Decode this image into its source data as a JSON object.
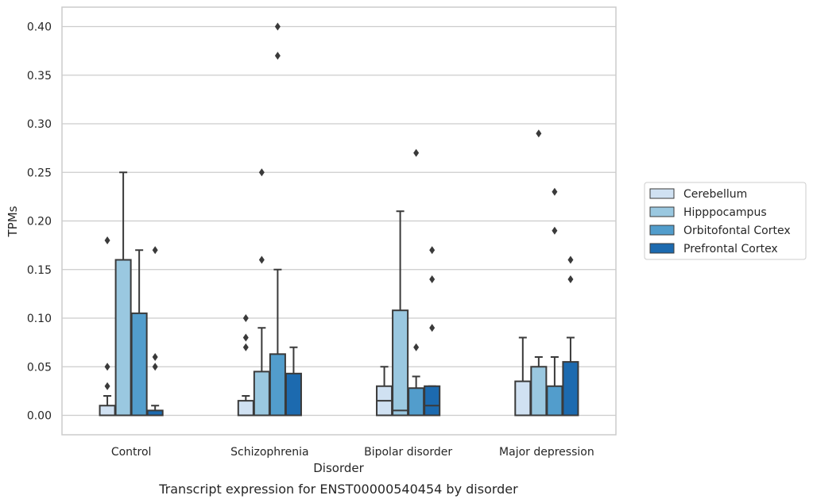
{
  "chart_data": {
    "type": "box",
    "caption": "Transcript expression for ENST00000540454 by disorder",
    "xlabel": "Disorder",
    "ylabel": "TPMs",
    "ylim": [
      -0.02,
      0.42
    ],
    "yticks": [
      "0.00",
      "0.05",
      "0.10",
      "0.15",
      "0.20",
      "0.25",
      "0.30",
      "0.35",
      "0.40"
    ],
    "categories": [
      "Control",
      "Schizophrenia",
      "Bipolar disorder",
      "Major depression"
    ],
    "grid": true,
    "legend_position": "right",
    "series": [
      {
        "name": "Cerebellum",
        "color": "#d0e1f2",
        "boxes": [
          {
            "q1": 0.0,
            "median": 0.0,
            "q3": 0.01,
            "whisker_low": 0.0,
            "whisker_high": 0.02,
            "outliers": [
              0.03,
              0.05,
              0.18
            ]
          },
          {
            "q1": 0.0,
            "median": 0.0,
            "q3": 0.015,
            "whisker_low": 0.0,
            "whisker_high": 0.02,
            "outliers": [
              0.07,
              0.08,
              0.1
            ]
          },
          {
            "q1": 0.0,
            "median": 0.015,
            "q3": 0.03,
            "whisker_low": 0.0,
            "whisker_high": 0.05,
            "outliers": []
          },
          {
            "q1": 0.0,
            "median": 0.0,
            "q3": 0.035,
            "whisker_low": 0.0,
            "whisker_high": 0.08,
            "outliers": []
          }
        ]
      },
      {
        "name": "Hipppocampus",
        "color": "#9ac8e0",
        "boxes": [
          {
            "q1": 0.0,
            "median": 0.0,
            "q3": 0.16,
            "whisker_low": 0.0,
            "whisker_high": 0.25,
            "outliers": []
          },
          {
            "q1": 0.0,
            "median": 0.0,
            "q3": 0.045,
            "whisker_low": 0.0,
            "whisker_high": 0.09,
            "outliers": [
              0.16,
              0.25
            ]
          },
          {
            "q1": 0.0,
            "median": 0.005,
            "q3": 0.108,
            "whisker_low": 0.0,
            "whisker_high": 0.21,
            "outliers": []
          },
          {
            "q1": 0.0,
            "median": 0.0,
            "q3": 0.05,
            "whisker_low": 0.0,
            "whisker_high": 0.06,
            "outliers": [
              0.29
            ]
          }
        ]
      },
      {
        "name": "Orbitofontal Cortex",
        "color": "#529dcc",
        "boxes": [
          {
            "q1": 0.0,
            "median": 0.0,
            "q3": 0.105,
            "whisker_low": 0.0,
            "whisker_high": 0.17,
            "outliers": []
          },
          {
            "q1": 0.0,
            "median": 0.0,
            "q3": 0.063,
            "whisker_low": 0.0,
            "whisker_high": 0.15,
            "outliers": [
              0.37,
              0.4
            ]
          },
          {
            "q1": 0.0,
            "median": 0.0,
            "q3": 0.028,
            "whisker_low": 0.0,
            "whisker_high": 0.04,
            "outliers": [
              0.07,
              0.27
            ]
          },
          {
            "q1": 0.0,
            "median": 0.0,
            "q3": 0.03,
            "whisker_low": 0.0,
            "whisker_high": 0.06,
            "outliers": [
              0.19,
              0.23
            ]
          }
        ]
      },
      {
        "name": "Prefrontal Cortex",
        "color": "#1c6aaf",
        "boxes": [
          {
            "q1": 0.0,
            "median": 0.0,
            "q3": 0.005,
            "whisker_low": 0.0,
            "whisker_high": 0.01,
            "outliers": [
              0.05,
              0.06,
              0.17
            ]
          },
          {
            "q1": 0.0,
            "median": 0.0,
            "q3": 0.043,
            "whisker_low": 0.0,
            "whisker_high": 0.07,
            "outliers": []
          },
          {
            "q1": 0.0,
            "median": 0.01,
            "q3": 0.03,
            "whisker_low": 0.0,
            "whisker_high": 0.03,
            "outliers": [
              0.09,
              0.14,
              0.17
            ]
          },
          {
            "q1": 0.0,
            "median": 0.0,
            "q3": 0.055,
            "whisker_low": 0.0,
            "whisker_high": 0.08,
            "outliers": [
              0.14,
              0.16
            ]
          }
        ]
      }
    ]
  }
}
